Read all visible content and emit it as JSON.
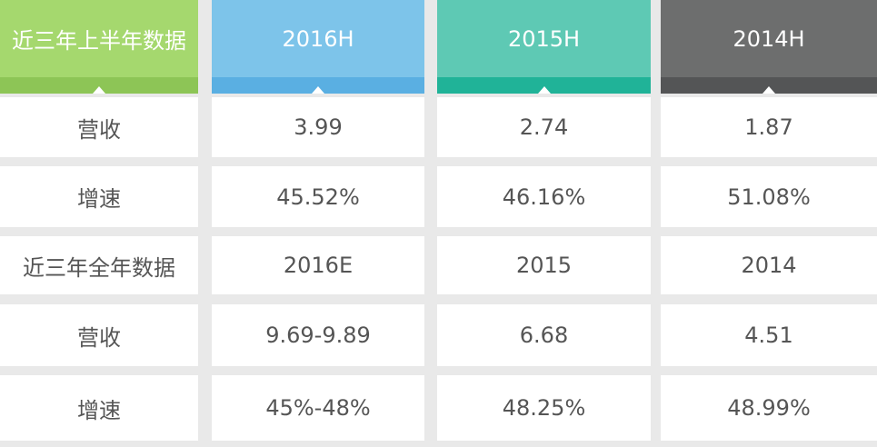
{
  "table": {
    "header": [
      "近三年上半年数据",
      "2016H",
      "2015H",
      "2014H"
    ],
    "rows": [
      [
        "营收",
        "3.99",
        "2.74",
        "1.87"
      ],
      [
        "增速",
        "45.52%",
        "46.16%",
        "51.08%"
      ],
      [
        "近三年全年数据",
        "2016E",
        "2015",
        "2014"
      ],
      [
        "营收",
        "9.69-9.89",
        "6.68",
        "4.51"
      ],
      [
        "增速",
        "45%-48%",
        "48.25%",
        "48.99%"
      ]
    ]
  }
}
